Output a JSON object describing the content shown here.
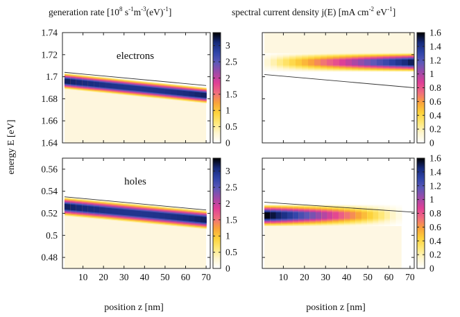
{
  "titles": {
    "left": {
      "pre": "generation rate [10",
      "s1": "8",
      "m1": " s",
      "s2": "-1",
      "m2": "m",
      "s3": "-3",
      "post": "(eV)",
      "s4": "-1",
      "end": "]"
    },
    "right": {
      "pre": "spectral current density j(E) [mA cm",
      "s1": "-2",
      "m1": " eV",
      "s2": "-1",
      "end": "]"
    }
  },
  "axis_labels": {
    "y": "energy E [eV]",
    "x_left": "position z [nm]",
    "x_right": "position z [nm]"
  },
  "colors": {
    "colormap": [
      "#ffffff",
      "#fff6cf",
      "#ffe97a",
      "#fdd23a",
      "#f9a33a",
      "#f06d7e",
      "#e03f96",
      "#a04aa8",
      "#5d58b8",
      "#2f44a8",
      "#162a7a",
      "#000000"
    ]
  },
  "chart_data": [
    {
      "id": "gen-electrons",
      "type": "heatmap",
      "label": "electrons",
      "xlim": [
        0,
        72
      ],
      "ylim": [
        1.64,
        1.74
      ],
      "xticks": [
        10,
        20,
        30,
        40,
        50,
        60,
        70
      ],
      "yticks": [
        1.64,
        1.66,
        1.68,
        1.7,
        1.72,
        1.74
      ],
      "colorbar": {
        "min": 0,
        "max": 3.4,
        "ticks": [
          0,
          0.5,
          1,
          1.5,
          2,
          2.5,
          3
        ]
      },
      "band": {
        "x": [
          1,
          70
        ],
        "center": [
          1.696,
          1.683
        ],
        "halfwidth": 0.006,
        "peak": 3.2
      },
      "edge_line": {
        "x": [
          1,
          70
        ],
        "y": [
          1.704,
          1.692
        ]
      }
    },
    {
      "id": "current-electrons",
      "type": "heatmap",
      "xlim": [
        0,
        72
      ],
      "ylim": [
        1.64,
        1.74
      ],
      "xticks": [
        10,
        20,
        30,
        40,
        50,
        60,
        70
      ],
      "yticks": [
        1.64,
        1.66,
        1.68,
        1.7,
        1.72,
        1.74
      ],
      "colorbar": {
        "min": 0,
        "max": 1.6,
        "ticks": [
          0,
          0.2,
          0.4,
          0.6,
          0.8,
          1,
          1.2,
          1.4,
          1.6
        ]
      },
      "band": {
        "x": [
          1,
          72
        ],
        "center": [
          1.713,
          1.713
        ],
        "halfwidth": 0.007,
        "peak": 1.5
      },
      "edge_line": {
        "x": [
          1,
          72
        ],
        "y": [
          1.702,
          1.69
        ]
      }
    },
    {
      "id": "gen-holes",
      "type": "heatmap",
      "label": "holes",
      "xlim": [
        0,
        72
      ],
      "ylim": [
        0.47,
        0.57
      ],
      "xticks": [
        10,
        20,
        30,
        40,
        50,
        60,
        70
      ],
      "yticks": [
        0.48,
        0.5,
        0.52,
        0.54,
        0.56
      ],
      "colorbar": {
        "min": 0,
        "max": 3.4,
        "ticks": [
          0,
          0.5,
          1,
          1.5,
          2,
          2.5,
          3
        ]
      },
      "band": {
        "x": [
          1,
          70
        ],
        "center": [
          0.526,
          0.514
        ],
        "halfwidth": 0.007,
        "peak": 3.2
      },
      "edge_line": {
        "x": [
          1,
          70
        ],
        "y": [
          0.535,
          0.523
        ]
      }
    },
    {
      "id": "current-holes",
      "type": "heatmap",
      "xlim": [
        0,
        72
      ],
      "ylim": [
        0.47,
        0.57
      ],
      "xticks": [
        10,
        20,
        30,
        40,
        50,
        60,
        70
      ],
      "yticks": [
        0.48,
        0.5,
        0.52,
        0.54,
        0.56
      ],
      "colorbar": {
        "min": 0,
        "max": 1.6,
        "ticks": [
          0,
          0.2,
          0.4,
          0.6,
          0.8,
          1,
          1.2,
          1.4,
          1.6
        ]
      },
      "band": {
        "x": [
          1,
          66
        ],
        "center": [
          0.518,
          0.518
        ],
        "halfwidth": 0.008,
        "peak": 1.6
      },
      "edge_line": {
        "x": [
          1,
          72
        ],
        "y": [
          0.53,
          0.521
        ]
      }
    }
  ]
}
